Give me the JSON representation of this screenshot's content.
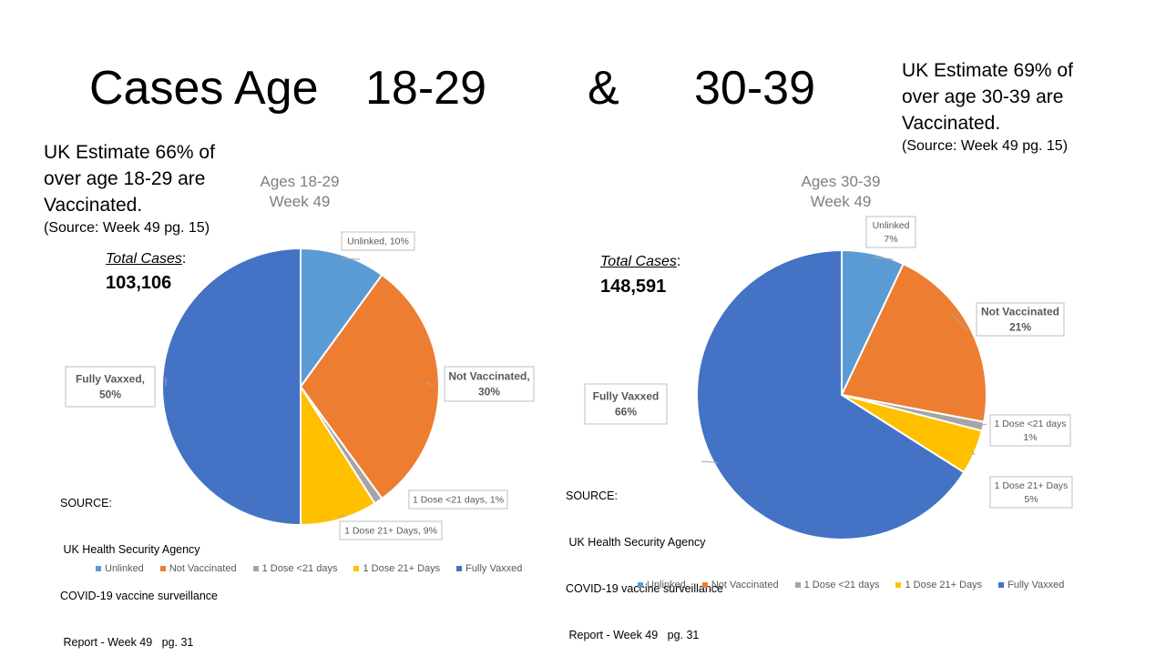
{
  "title": {
    "part1": "Cases Age",
    "part2": "18-29",
    "part3": "&",
    "part4": "30-39"
  },
  "left_panel": {
    "estimate_lines": [
      "UK Estimate 66% of",
      "over age 18-29 are",
      "Vaccinated."
    ],
    "estimate_source": "(Source: Week 49 pg. 15)",
    "total_label": "Total Cases",
    "total_colon": ":",
    "total_value": "103,106",
    "source_lines": [
      "SOURCE:",
      " UK Health Security Agency",
      "COVID-19 vaccine surveillance",
      " Report - Week 49   pg. 31"
    ]
  },
  "right_panel": {
    "estimate_lines": [
      "UK Estimate 69% of",
      "over age 30-39 are",
      "Vaccinated."
    ],
    "estimate_source": "(Source: Week 49 pg. 15)",
    "total_label": "Total Cases",
    "total_colon": ":",
    "total_value": "148,591",
    "source_lines": [
      "SOURCE:",
      " UK Health Security Agency",
      "COVID-19 vaccine surveillance",
      " Report - Week 49   pg. 31"
    ]
  },
  "chart_data": [
    {
      "type": "pie",
      "title": [
        "Ages 18-29",
        "Week 49"
      ],
      "legend_position": "bottom",
      "categories": [
        "Unlinked",
        "Not Vaccinated",
        "1 Dose <21 days",
        "1 Dose 21+ Days",
        "Fully Vaxxed"
      ],
      "values": [
        10,
        30,
        1,
        9,
        50
      ],
      "colors": [
        "#5b9bd5",
        "#ed7d31",
        "#a5a5a5",
        "#ffc000",
        "#4472c4"
      ],
      "labels": [
        {
          "lines": [
            "Unlinked, 10%"
          ],
          "bold": false
        },
        {
          "lines": [
            "Not Vaccinated,",
            "30%"
          ],
          "bold": true
        },
        {
          "lines": [
            "1 Dose <21 days, 1%"
          ],
          "bold": false
        },
        {
          "lines": [
            "1 Dose 21+ Days, 9%"
          ],
          "bold": false
        },
        {
          "lines": [
            "Fully Vaxxed,",
            "50%"
          ],
          "bold": true
        }
      ]
    },
    {
      "type": "pie",
      "title": [
        "Ages 30-39",
        "Week 49"
      ],
      "legend_position": "bottom",
      "categories": [
        "Unlinked",
        "Not Vaccinated",
        "1 Dose <21 days",
        "1 Dose 21+ Days",
        "Fully Vaxxed"
      ],
      "values": [
        7,
        21,
        1,
        5,
        66
      ],
      "colors": [
        "#5b9bd5",
        "#ed7d31",
        "#a5a5a5",
        "#ffc000",
        "#4472c4"
      ],
      "labels": [
        {
          "lines": [
            "Unlinked",
            "7%"
          ],
          "bold": false
        },
        {
          "lines": [
            "Not Vaccinated",
            "21%"
          ],
          "bold": true
        },
        {
          "lines": [
            "1 Dose <21 days",
            "1%"
          ],
          "bold": false
        },
        {
          "lines": [
            "1 Dose 21+ Days",
            "5%"
          ],
          "bold": false
        },
        {
          "lines": [
            "Fully Vaxxed",
            "66%"
          ],
          "bold": true
        }
      ]
    }
  ]
}
